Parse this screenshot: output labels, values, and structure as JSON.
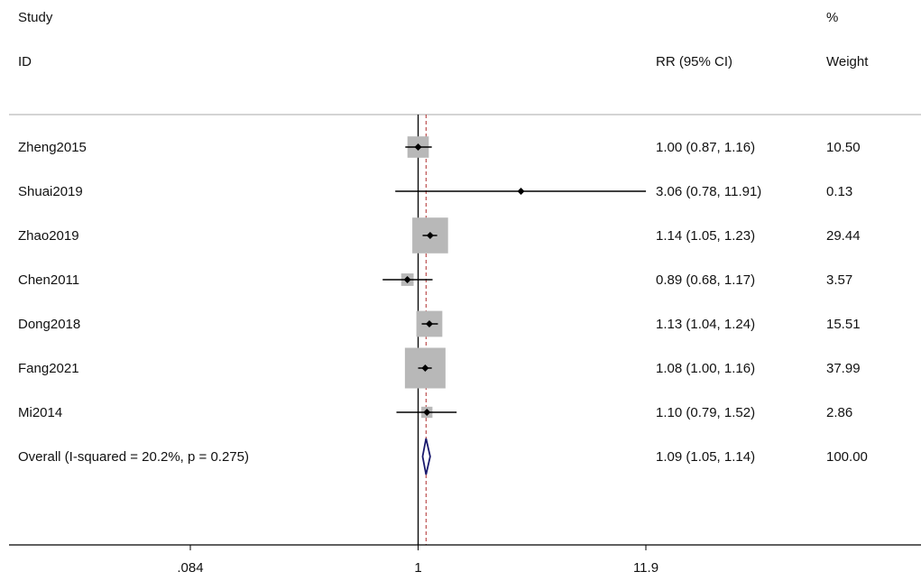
{
  "header": {
    "study_line1": "Study",
    "study_line2": "ID",
    "effect_label": "RR (95% CI)",
    "weight_line1": "%",
    "weight_line2": "Weight"
  },
  "chart_data": {
    "type": "forest",
    "scale": "log",
    "null_value": 1,
    "x_ticks": [
      {
        "value": 0.084,
        "label": ".084"
      },
      {
        "value": 1,
        "label": "1"
      },
      {
        "value": 11.9,
        "label": "11.9"
      }
    ],
    "xlim": [
      0.084,
      11.9
    ],
    "studies": [
      {
        "name": "Zheng2015",
        "rr": 1.0,
        "lower": 0.87,
        "upper": 1.16,
        "rr_text": "1.00 (0.87, 1.16)",
        "weight": 10.5,
        "weight_text": "10.50"
      },
      {
        "name": "Shuai2019",
        "rr": 3.06,
        "lower": 0.78,
        "upper": 11.91,
        "rr_text": "3.06 (0.78, 11.91)",
        "weight": 0.13,
        "weight_text": "0.13"
      },
      {
        "name": "Zhao2019",
        "rr": 1.14,
        "lower": 1.05,
        "upper": 1.23,
        "rr_text": "1.14 (1.05, 1.23)",
        "weight": 29.44,
        "weight_text": "29.44"
      },
      {
        "name": "Chen2011",
        "rr": 0.89,
        "lower": 0.68,
        "upper": 1.17,
        "rr_text": "0.89 (0.68, 1.17)",
        "weight": 3.57,
        "weight_text": "3.57"
      },
      {
        "name": "Dong2018",
        "rr": 1.13,
        "lower": 1.04,
        "upper": 1.24,
        "rr_text": "1.13 (1.04, 1.24)",
        "weight": 15.51,
        "weight_text": "15.51"
      },
      {
        "name": "Fang2021",
        "rr": 1.08,
        "lower": 1.0,
        "upper": 1.16,
        "rr_text": "1.08 (1.00, 1.16)",
        "weight": 37.99,
        "weight_text": "37.99"
      },
      {
        "name": "Mi2014",
        "rr": 1.1,
        "lower": 0.79,
        "upper": 1.52,
        "rr_text": "1.10 (0.79, 1.52)",
        "weight": 2.86,
        "weight_text": "2.86"
      }
    ],
    "overall": {
      "label": "Overall  (I-squared = 20.2%, p = 0.275)",
      "rr": 1.09,
      "lower": 1.05,
      "upper": 1.14,
      "rr_text": "1.09 (1.05, 1.14)",
      "weight_text": "100.00"
    },
    "colors": {
      "box": "#b8b8b8",
      "ci_line": "#000000",
      "null_line": "#000000",
      "overall_line": "#b03030",
      "diamond": "#1a1a6e",
      "axis": "#000000",
      "separator": "#aaaaaa"
    }
  }
}
